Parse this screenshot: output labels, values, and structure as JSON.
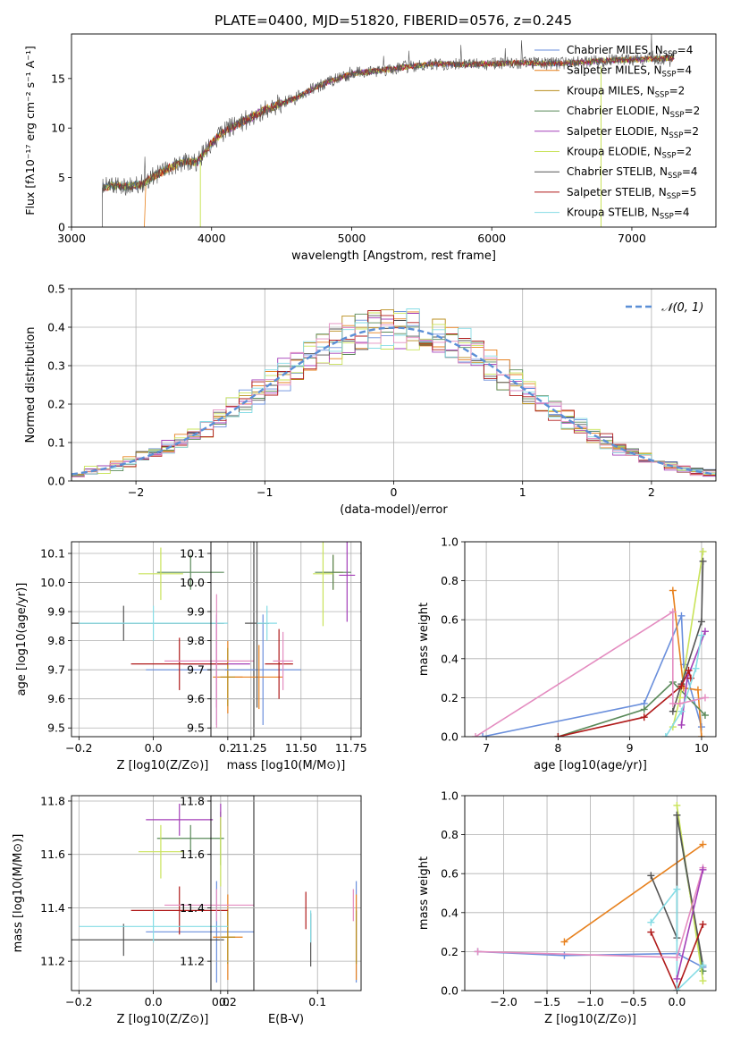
{
  "figure": {
    "title": "PLATE=0400, MJD=51820, FIBERID=0576, z=0.245"
  },
  "colors": [
    "#6a8fdc",
    "#e7811e",
    "#b88d1c",
    "#5a8a5a",
    "#a43fb8",
    "#c9e35a",
    "#555555",
    "#b01a1a",
    "#86dce5",
    "#e48cc0"
  ],
  "legend_models": [
    "Chabrier MILES",
    "Salpeter MILES",
    "Kroupa MILES",
    "Chabrier ELODIE",
    "Salpeter ELODIE",
    "Kroupa ELODIE",
    "Chabrier STELIB",
    "Salpeter STELIB",
    "Kroupa STELIB"
  ],
  "chart_data": [
    {
      "id": "spectrum",
      "type": "line",
      "xlabel": "wavelength [Angstrom, rest frame]",
      "ylabel": "Flux [f_λ 10^-17 erg cm^-2 s^-1 A^-1]",
      "xlim": [
        3000,
        7600
      ],
      "ylim": [
        0,
        19.5
      ],
      "xticks": [
        3000,
        4000,
        5000,
        6000,
        7000
      ],
      "yticks": [
        0,
        5,
        10,
        15
      ],
      "grid": false,
      "legend_placement": "upper-right",
      "series": [
        {
          "name": "Chabrier MILES",
          "n_ssp": "4",
          "color_index": 0
        },
        {
          "name": "Salpeter MILES",
          "n_ssp": "4",
          "color_index": 1
        },
        {
          "name": "Kroupa MILES",
          "n_ssp": "2",
          "color_index": 2
        },
        {
          "name": "Chabrier ELODIE",
          "n_ssp": "2",
          "color_index": 3
        },
        {
          "name": "Salpeter ELODIE",
          "n_ssp": "2",
          "color_index": 4
        },
        {
          "name": "Kroupa ELODIE",
          "n_ssp": "2",
          "color_index": 5
        },
        {
          "name": "Chabrier STELIB",
          "n_ssp": "4",
          "color_index": 6
        },
        {
          "name": "Salpeter STELIB",
          "n_ssp": "5",
          "color_index": 7
        },
        {
          "name": "Kroupa STELIB",
          "n_ssp": "4",
          "color_index": 8
        }
      ],
      "continuum": {
        "x": [
          3200,
          3300,
          3400,
          3500,
          3600,
          3700,
          3800,
          3900,
          4000,
          4100,
          4200,
          4300,
          4400,
          4500,
          4600,
          4700,
          4800,
          4900,
          5000,
          5200,
          5400,
          5600,
          5800,
          6000,
          6200,
          6400,
          6600,
          6800,
          7000,
          7200,
          7300
        ],
        "y": [
          4.0,
          4.2,
          4.1,
          4.3,
          5.2,
          6.0,
          6.6,
          6.6,
          8.5,
          9.8,
          10.5,
          11.2,
          12.0,
          12.5,
          13.0,
          13.8,
          14.5,
          15.0,
          15.5,
          15.8,
          16.2,
          16.5,
          16.4,
          16.5,
          16.6,
          16.5,
          16.6,
          16.8,
          16.9,
          17.0,
          17.1
        ]
      }
    },
    {
      "id": "residuals",
      "type": "line",
      "xlabel": "(data-model)/error",
      "ylabel": "Normed distribution",
      "xlim": [
        -2.5,
        2.5
      ],
      "ylim": [
        0,
        0.5
      ],
      "xticks": [
        -2,
        -1,
        0,
        1,
        2
      ],
      "yticks": [
        0.0,
        0.1,
        0.2,
        0.3,
        0.4,
        0.5
      ],
      "grid": true,
      "legend_placement": "upper-right",
      "reference_label": "𝒩(0, 1)",
      "bin_width": 0.1,
      "hist_color_indices": [
        0,
        1,
        2,
        3,
        4,
        5,
        6,
        7,
        8,
        9
      ]
    },
    {
      "id": "age_vs_Z",
      "type": "scatter",
      "xlabel": "Z [log10(Z/Z⊙)]",
      "ylabel": "age  [log10(age/yr)]",
      "xlim": [
        -0.22,
        0.27
      ],
      "ylim": [
        9.47,
        10.14
      ],
      "xticks": [
        -0.2,
        0.0,
        0.2
      ],
      "yticks": [
        9.5,
        9.6,
        9.7,
        9.8,
        9.9,
        10.0,
        10.1
      ],
      "grid": true,
      "points": [
        {
          "x": 0.17,
          "y": 9.7,
          "xerr": 0.19,
          "yerr": 0.19,
          "color_index": 0
        },
        {
          "x": 0.2,
          "y": 9.675,
          "xerr": 0.04,
          "yerr": 0.125,
          "color_index": 1
        },
        {
          "x": 0.2,
          "y": 9.675,
          "xerr": 0.02,
          "yerr": 0.1,
          "color_index": 2
        },
        {
          "x": 0.1,
          "y": 10.035,
          "xerr": 0.09,
          "yerr": 0.06,
          "color_index": 3
        },
        {
          "x": 0.17,
          "y": 9.72,
          "xerr": 0.09,
          "yerr": 0.15,
          "color_index": 4
        },
        {
          "x": 0.02,
          "y": 10.03,
          "xerr": 0.06,
          "yerr": 0.09,
          "color_index": 5
        },
        {
          "x": -0.08,
          "y": 9.86,
          "xerr": 0.27,
          "yerr": 0.06,
          "color_index": 6
        },
        {
          "x": 0.07,
          "y": 9.72,
          "xerr": 0.13,
          "yerr": 0.09,
          "color_index": 7
        },
        {
          "x": 0.0,
          "y": 9.86,
          "xerr": 0.2,
          "yerr": 0.06,
          "color_index": 8
        },
        {
          "x": 0.17,
          "y": 9.73,
          "xerr": 0.14,
          "yerr": 0.23,
          "color_index": 9
        }
      ]
    },
    {
      "id": "age_vs_mass",
      "type": "scatter",
      "xlabel": "mass [log10(M/M⊙)]",
      "ylabel": "",
      "xlim": [
        11.05,
        11.8
      ],
      "ylim": [
        9.47,
        10.14
      ],
      "xticks": [
        11.25,
        11.5,
        11.75
      ],
      "yticks": [
        9.5,
        9.6,
        9.7,
        9.8,
        9.9,
        10.0,
        10.1
      ],
      "grid": true,
      "points": [
        {
          "x": 11.31,
          "y": 9.7,
          "xerr": 0.19,
          "yerr": 0.19,
          "color_index": 0
        },
        {
          "x": 11.29,
          "y": 9.675,
          "xerr": 0.12,
          "yerr": 0.11,
          "color_index": 1
        },
        {
          "x": 11.66,
          "y": 10.035,
          "xerr": 0.05,
          "yerr": 0.06,
          "color_index": 2
        },
        {
          "x": 11.66,
          "y": 10.035,
          "xerr": 0.09,
          "yerr": 0.06,
          "color_index": 3
        },
        {
          "x": 11.73,
          "y": 10.025,
          "xerr": 0.04,
          "yerr": 0.16,
          "color_index": 4
        },
        {
          "x": 11.61,
          "y": 10.03,
          "xerr": 0.05,
          "yerr": 0.18,
          "color_index": 5
        },
        {
          "x": 11.28,
          "y": 9.86,
          "xerr": 0.06,
          "yerr": 0.29,
          "color_index": 6
        },
        {
          "x": 11.39,
          "y": 9.72,
          "xerr": 0.07,
          "yerr": 0.12,
          "color_index": 7
        },
        {
          "x": 11.33,
          "y": 9.86,
          "xerr": 0.05,
          "yerr": 0.06,
          "color_index": 8
        },
        {
          "x": 11.41,
          "y": 9.73,
          "xerr": 0.05,
          "yerr": 0.1,
          "color_index": 9
        }
      ]
    },
    {
      "id": "weight_vs_age",
      "type": "line",
      "xlabel": "age  [log10(age/yr)]",
      "ylabel": "mass weight",
      "xlim": [
        6.7,
        10.2
      ],
      "ylim": [
        0.0,
        1.0
      ],
      "xticks": [
        7,
        8,
        9,
        10
      ],
      "yticks": [
        0.0,
        0.2,
        0.4,
        0.6,
        0.8,
        1.0
      ],
      "grid": true,
      "series": [
        {
          "color_index": 0,
          "x": [
            6.95,
            9.2,
            9.72,
            9.75,
            10.0
          ],
          "y": [
            0.0,
            0.17,
            0.62,
            0.37,
            0.05
          ]
        },
        {
          "color_index": 1,
          "x": [
            9.6,
            9.75,
            9.95,
            10.0
          ],
          "y": [
            0.75,
            0.25,
            0.24,
            0.0
          ]
        },
        {
          "color_index": 3,
          "x": [
            8.0,
            9.2,
            9.6,
            10.05
          ],
          "y": [
            0.0,
            0.14,
            0.28,
            0.11
          ]
        },
        {
          "color_index": 4,
          "x": [
            9.72,
            9.8,
            10.05
          ],
          "y": [
            0.06,
            0.3,
            0.54
          ]
        },
        {
          "color_index": 5,
          "x": [
            9.6,
            9.7,
            10.02
          ],
          "y": [
            0.05,
            0.2,
            0.95
          ]
        },
        {
          "color_index": 6,
          "x": [
            9.6,
            9.72,
            10.0,
            10.02
          ],
          "y": [
            0.13,
            0.27,
            0.59,
            0.9
          ]
        },
        {
          "color_index": 7,
          "x": [
            8.0,
            9.2,
            9.72,
            9.82,
            9.85
          ],
          "y": [
            0.0,
            0.1,
            0.26,
            0.34,
            0.3
          ]
        },
        {
          "color_index": 8,
          "x": [
            9.5,
            9.72,
            9.92,
            10.0
          ],
          "y": [
            0.0,
            0.13,
            0.35,
            0.52
          ]
        },
        {
          "color_index": 9,
          "x": [
            6.85,
            9.6,
            9.6,
            9.7,
            10.05
          ],
          "y": [
            0.0,
            0.64,
            0.17,
            0.17,
            0.2
          ]
        }
      ]
    },
    {
      "id": "mass_vs_Z",
      "type": "scatter",
      "xlabel": "Z [log10(Z/Z⊙)]",
      "ylabel": "mass [log10(M/M⊙)]",
      "xlim": [
        -0.22,
        0.27
      ],
      "ylim": [
        11.09,
        11.82
      ],
      "xticks": [
        -0.2,
        0.0,
        0.2
      ],
      "yticks": [
        11.2,
        11.4,
        11.6,
        11.8
      ],
      "grid": true,
      "points": [
        {
          "x": 0.17,
          "y": 11.31,
          "xerr": 0.19,
          "yerr": 0.19,
          "color_index": 0
        },
        {
          "x": 0.2,
          "y": 11.29,
          "xerr": 0.04,
          "yerr": 0.16,
          "color_index": 1
        },
        {
          "x": 0.2,
          "y": 11.29,
          "xerr": 0.02,
          "yerr": 0.1,
          "color_index": 2
        },
        {
          "x": 0.1,
          "y": 11.66,
          "xerr": 0.09,
          "yerr": 0.05,
          "color_index": 3
        },
        {
          "x": 0.07,
          "y": 11.73,
          "xerr": 0.09,
          "yerr": 0.06,
          "color_index": 4
        },
        {
          "x": 0.02,
          "y": 11.61,
          "xerr": 0.06,
          "yerr": 0.1,
          "color_index": 5
        },
        {
          "x": -0.08,
          "y": 11.28,
          "xerr": 0.27,
          "yerr": 0.06,
          "color_index": 6
        },
        {
          "x": 0.07,
          "y": 11.39,
          "xerr": 0.13,
          "yerr": 0.09,
          "color_index": 7
        },
        {
          "x": 0.0,
          "y": 11.33,
          "xerr": 0.2,
          "yerr": 0.06,
          "color_index": 8
        },
        {
          "x": 0.17,
          "y": 11.41,
          "xerr": 0.14,
          "yerr": 0.06,
          "color_index": 9
        }
      ]
    },
    {
      "id": "mass_vs_ebv",
      "type": "scatter",
      "xlabel": "E(B-V)",
      "ylabel": "",
      "xlim": [
        -0.01,
        0.145
      ],
      "ylim": [
        11.09,
        11.82
      ],
      "xticks": [
        0.0,
        0.1
      ],
      "yticks": [
        11.2,
        11.4,
        11.6,
        11.8
      ],
      "grid": true,
      "points": [
        {
          "x": 0.14,
          "y": 11.31,
          "yerr": 0.19,
          "color_index": 0
        },
        {
          "x": 0.14,
          "y": 11.29,
          "yerr": 0.16,
          "color_index": 1
        },
        {
          "x": 0.14,
          "y": 11.29,
          "yerr": 0.1,
          "color_index": 2
        },
        {
          "x": 0.0,
          "y": 11.66,
          "yerr": 0.1,
          "color_index": 3
        },
        {
          "x": 0.0,
          "y": 11.73,
          "yerr": 0.06,
          "color_index": 4
        },
        {
          "x": 0.0,
          "y": 11.61,
          "yerr": 0.13,
          "color_index": 5
        },
        {
          "x": 0.093,
          "y": 11.28,
          "yerr": 0.1,
          "color_index": 6
        },
        {
          "x": 0.088,
          "y": 11.39,
          "yerr": 0.07,
          "color_index": 7
        },
        {
          "x": 0.093,
          "y": 11.33,
          "yerr": 0.06,
          "color_index": 8
        },
        {
          "x": 0.137,
          "y": 11.41,
          "yerr": 0.06,
          "color_index": 9
        }
      ]
    },
    {
      "id": "weight_vs_Z",
      "type": "line",
      "xlabel": "Z [log10(Z/Z⊙)]",
      "ylabel": "mass weight",
      "xlim": [
        -2.45,
        0.45
      ],
      "ylim": [
        0.0,
        1.0
      ],
      "xticks": [
        -2.0,
        -1.5,
        -1.0,
        -0.5,
        0.0
      ],
      "yticks": [
        0.0,
        0.2,
        0.4,
        0.6,
        0.8,
        1.0
      ],
      "grid": true,
      "series": [
        {
          "color_index": 0,
          "x": [
            -2.3,
            -1.3,
            0.0,
            0.3
          ],
          "y": [
            0.2,
            0.18,
            0.19,
            0.12
          ]
        },
        {
          "color_index": 1,
          "x": [
            -1.3,
            0.3
          ],
          "y": [
            0.25,
            0.75
          ]
        },
        {
          "color_index": 3,
          "x": [
            0.0,
            0.3
          ],
          "y": [
            0.9,
            0.1
          ]
        },
        {
          "color_index": 5,
          "x": [
            0.0,
            0.3
          ],
          "y": [
            0.95,
            0.05
          ]
        },
        {
          "color_index": 6,
          "x": [
            -0.3,
            0.0,
            0.0,
            0.3
          ],
          "y": [
            0.59,
            0.27,
            0.9,
            0.13
          ]
        },
        {
          "color_index": 7,
          "x": [
            -0.3,
            0.0,
            0.3
          ],
          "y": [
            0.3,
            0.0,
            0.34
          ]
        },
        {
          "color_index": 8,
          "x": [
            -0.3,
            0.0,
            0.0,
            0.3
          ],
          "y": [
            0.35,
            0.52,
            0.0,
            0.13
          ]
        },
        {
          "color_index": 9,
          "x": [
            -2.3,
            0.0,
            0.3
          ],
          "y": [
            0.2,
            0.17,
            0.63
          ]
        },
        {
          "color_index": 4,
          "x": [
            0.0,
            0.3
          ],
          "y": [
            0.06,
            0.62
          ]
        }
      ]
    }
  ]
}
